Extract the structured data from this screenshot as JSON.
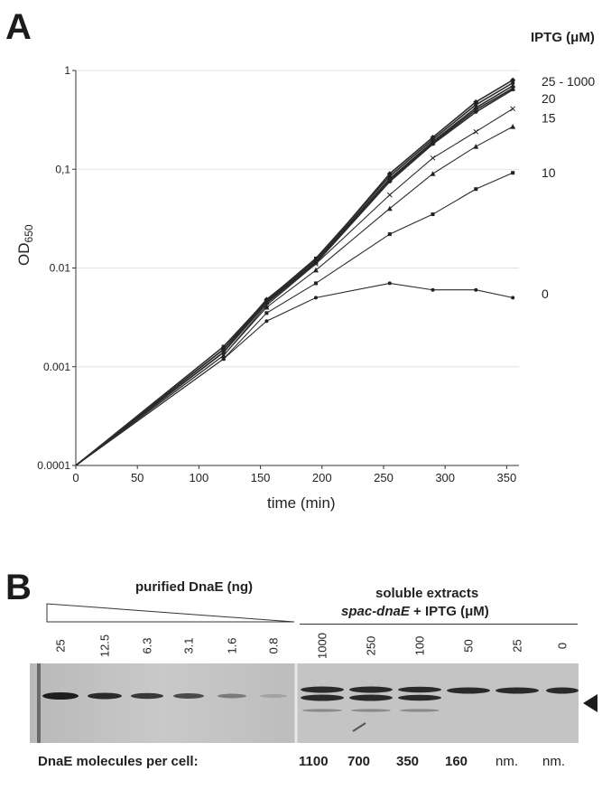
{
  "panel_a": {
    "letter": "A",
    "iptg_title": "IPTG (μM)"
  },
  "chart_data": {
    "type": "line",
    "xlabel": "time (min)",
    "ylabel": "OD",
    "ylabel_sub": "650",
    "x": [
      0,
      120,
      155,
      195,
      255,
      290,
      325,
      355
    ],
    "xlim": [
      0,
      360
    ],
    "xticks": [
      "0",
      "50",
      "100",
      "150",
      "200",
      "250",
      "300",
      "350"
    ],
    "y_scale": "log",
    "ylim": [
      0.0001,
      1
    ],
    "yticks": [
      "0.0001",
      "0.001",
      "0.01",
      "0,1",
      "1"
    ],
    "grid": "horizontal",
    "series": [
      {
        "name": "25 - 1000",
        "values": [
          0.0001,
          0.0015,
          0.0048,
          0.012,
          0.09,
          0.21,
          0.48,
          0.8
        ]
      },
      {
        "values": [
          0.0001,
          0.0016,
          0.0047,
          0.0125,
          0.085,
          0.2,
          0.45,
          0.75
        ]
      },
      {
        "values": [
          0.0001,
          0.0014,
          0.0046,
          0.012,
          0.08,
          0.19,
          0.42,
          0.7
        ]
      },
      {
        "values": [
          0.0001,
          0.0015,
          0.0045,
          0.0115,
          0.078,
          0.185,
          0.4,
          0.66
        ]
      },
      {
        "values": [
          0.0001,
          0.0014,
          0.0044,
          0.0112,
          0.075,
          0.18,
          0.38,
          0.64
        ]
      },
      {
        "name": "20",
        "values": [
          0.0001,
          0.0013,
          0.0042,
          0.011,
          0.055,
          0.13,
          0.24,
          0.41
        ]
      },
      {
        "name": "15",
        "values": [
          0.0001,
          0.0013,
          0.004,
          0.0095,
          0.04,
          0.09,
          0.17,
          0.27
        ]
      },
      {
        "name": "10",
        "values": [
          0.0001,
          0.0012,
          0.0035,
          0.007,
          0.022,
          0.035,
          0.063,
          0.092
        ]
      },
      {
        "name": "0",
        "values": [
          0.0001,
          0.0012,
          0.0029,
          0.005,
          0.007,
          0.006,
          0.006,
          0.005
        ]
      }
    ]
  },
  "panel_b": {
    "letter": "B",
    "purified_label": "purified DnaE (ng)",
    "soluble_line1": "soluble extracts",
    "soluble_line2_italic": "spac-dnaE",
    "soluble_line2_rest": " + IPTG (μM)",
    "purified_lanes": [
      "25",
      "12.5",
      "6.3",
      "3.1",
      "1.6",
      "0.8"
    ],
    "extract_lanes": [
      "1000",
      "250",
      "100",
      "50",
      "25",
      "0"
    ],
    "molecules_label": "DnaE molecules per cell:",
    "molecules": [
      "1100",
      "700",
      "350",
      "160",
      "nm.",
      "nm."
    ]
  }
}
